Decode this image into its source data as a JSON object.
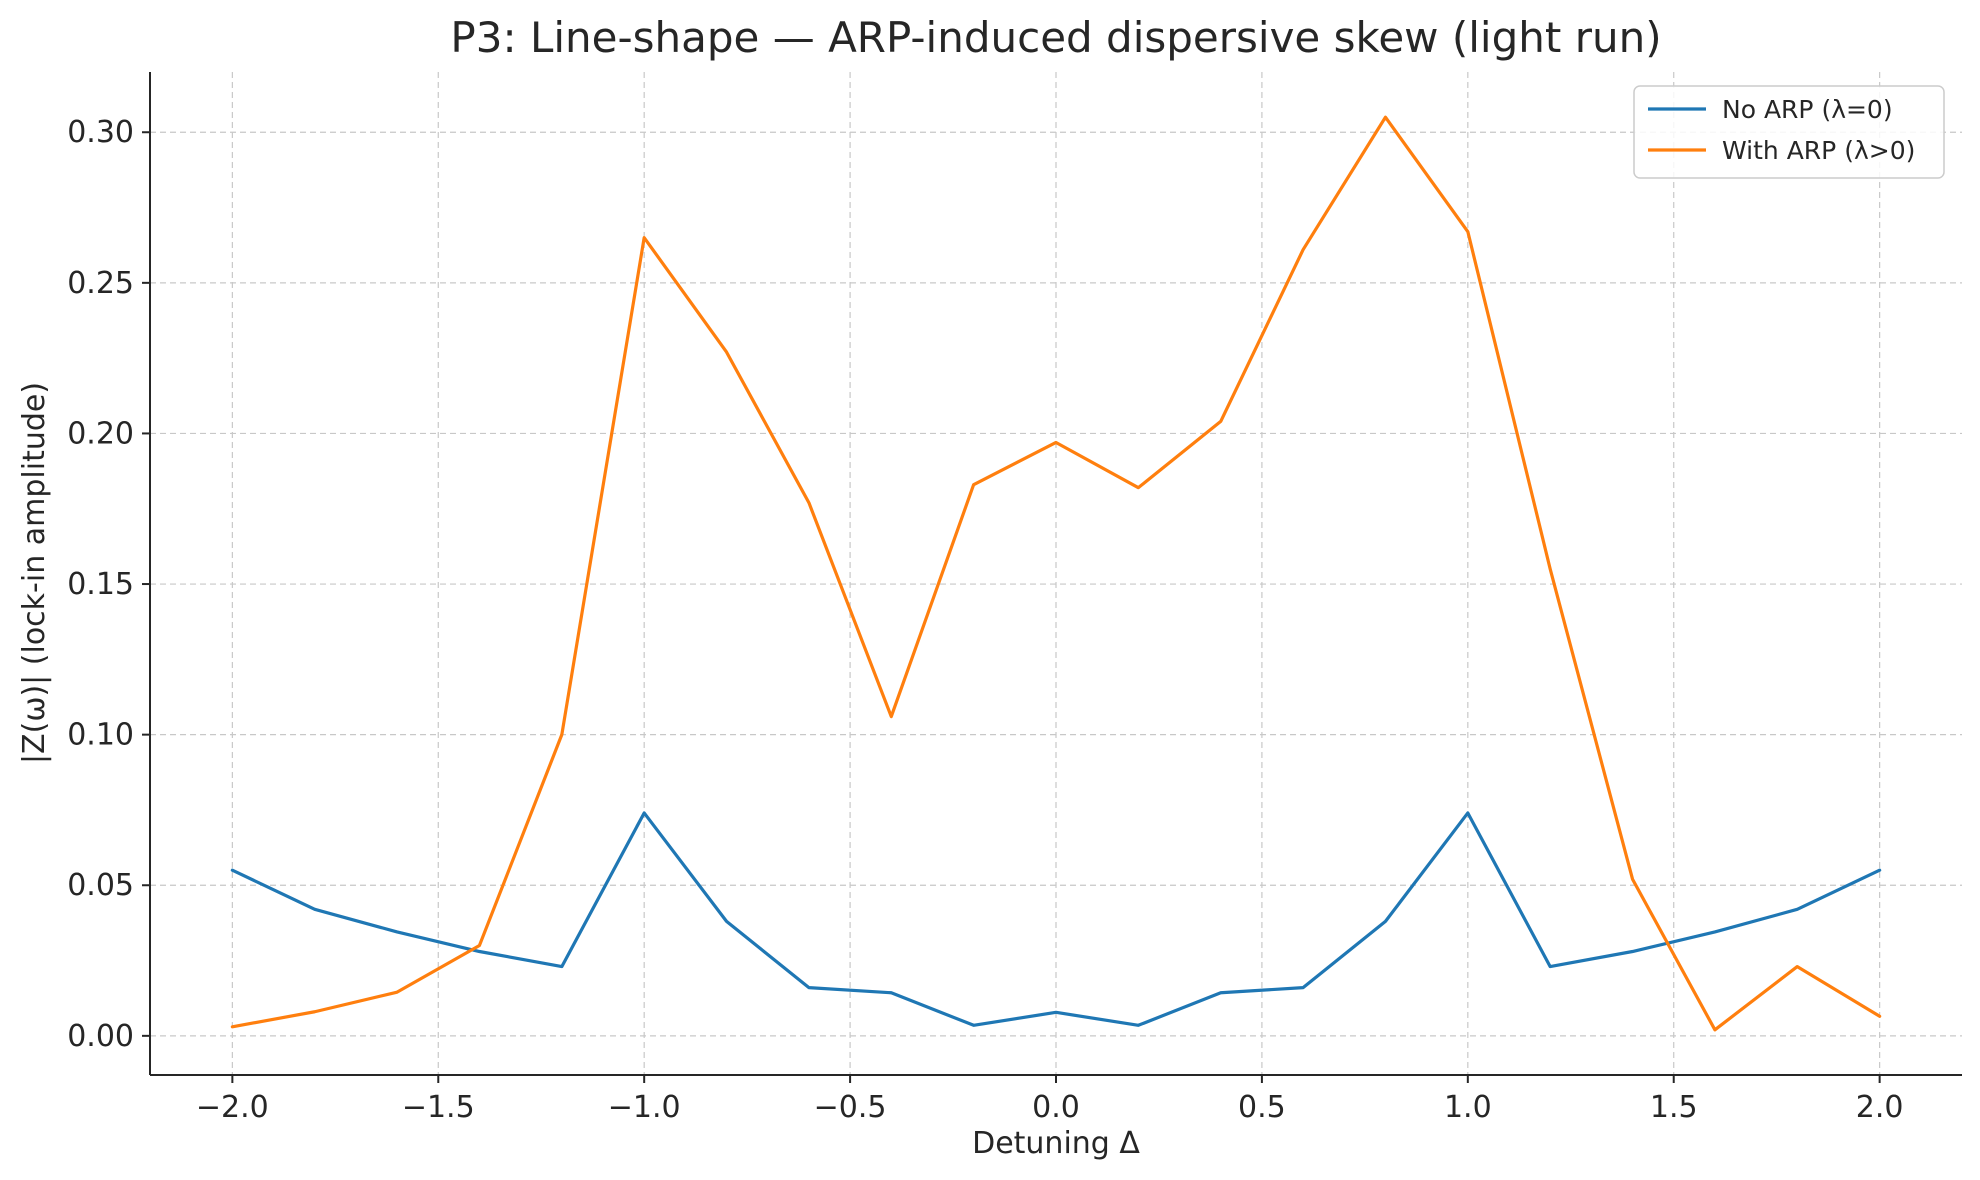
{
  "chart_data": {
    "type": "line",
    "title": "P3: Line-shape — ARP-induced dispersive skew (light run)",
    "xlabel": "Detuning Δ",
    "ylabel": "|Z(ω)| (lock-in amplitude)",
    "xlim": [
      -2.2,
      2.2
    ],
    "ylim": [
      -0.013,
      0.32
    ],
    "x_ticks": [
      -2.0,
      -1.5,
      -1.0,
      -0.5,
      0.0,
      0.5,
      1.0,
      1.5,
      2.0
    ],
    "x_tick_labels": [
      "−2.0",
      "−1.5",
      "−1.0",
      "−0.5",
      "0.0",
      "0.5",
      "1.0",
      "1.5",
      "2.0"
    ],
    "y_ticks": [
      0.0,
      0.05,
      0.1,
      0.15,
      0.2,
      0.25,
      0.3
    ],
    "y_tick_labels": [
      "0.00",
      "0.05",
      "0.10",
      "0.15",
      "0.20",
      "0.25",
      "0.30"
    ],
    "grid": true,
    "legend_position": "top-right",
    "x": [
      -2.0,
      -1.8,
      -1.6,
      -1.4,
      -1.2,
      -1.0,
      -0.8,
      -0.6,
      -0.4,
      -0.2,
      0.0,
      0.2,
      0.4,
      0.6,
      0.8,
      1.0,
      1.2,
      1.4,
      1.6,
      1.8,
      2.0
    ],
    "series": [
      {
        "name": "No ARP (λ=0)",
        "color": "#1f77b4",
        "values": [
          0.055,
          0.042,
          0.0345,
          0.028,
          0.023,
          0.074,
          0.038,
          0.016,
          0.0143,
          0.0035,
          0.0078,
          0.0035,
          0.0143,
          0.016,
          0.038,
          0.074,
          0.023,
          0.028,
          0.0345,
          0.042,
          0.055
        ]
      },
      {
        "name": "With ARP (λ>0)",
        "color": "#ff7f0e",
        "values": [
          0.003,
          0.008,
          0.0145,
          0.03,
          0.1,
          0.265,
          0.227,
          0.177,
          0.106,
          0.183,
          0.197,
          0.182,
          0.204,
          0.261,
          0.305,
          0.267,
          0.155,
          0.052,
          0.002,
          0.023,
          0.0065
        ]
      }
    ]
  }
}
